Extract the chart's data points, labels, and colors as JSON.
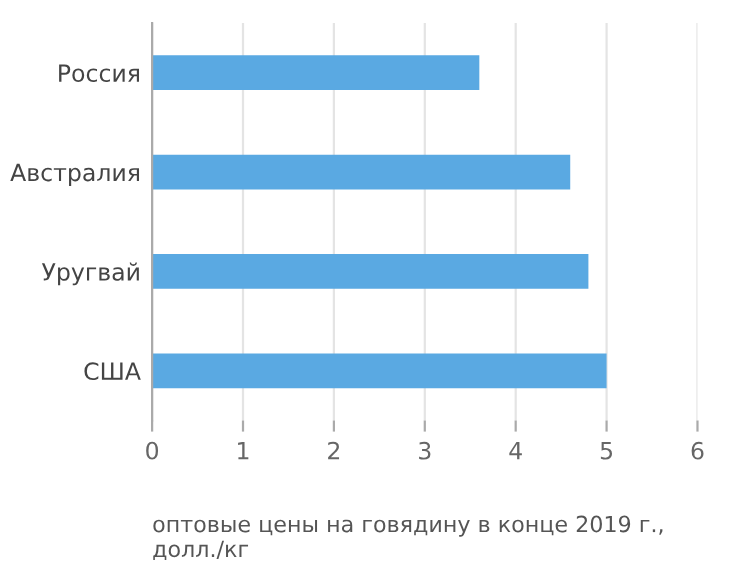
{
  "chart_data": {
    "type": "bar",
    "orientation": "horizontal",
    "categories": [
      "Россия",
      "Австралия",
      "Уругвай",
      "США"
    ],
    "values": [
      3.6,
      4.6,
      4.8,
      5.0
    ],
    "color": "#5aa9e2",
    "xlabel": "оптовые цены на говядину в конце 2019 г.,\nдолл./кг",
    "xlim": [
      0,
      6
    ],
    "xticks": [
      0,
      1,
      2,
      3,
      4,
      5,
      6
    ],
    "grid": "x"
  }
}
